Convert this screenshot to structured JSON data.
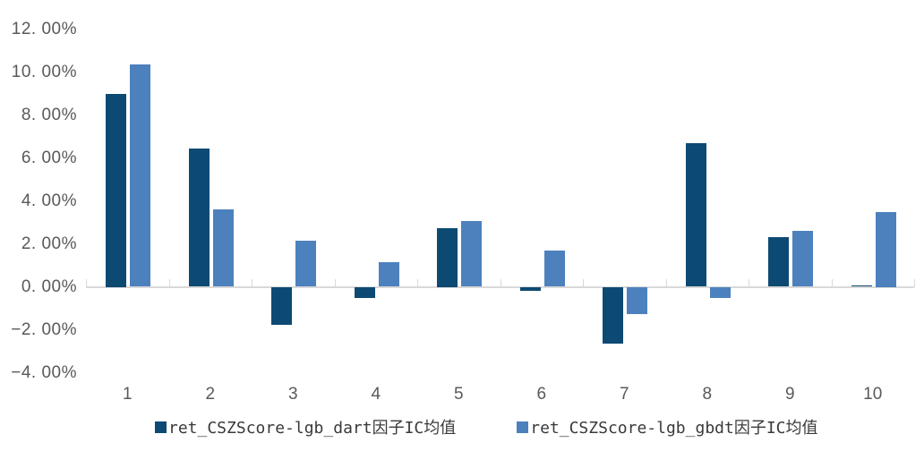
{
  "chart_data": {
    "type": "bar",
    "title": "",
    "xlabel": "",
    "ylabel": "",
    "categories": [
      "1",
      "2",
      "3",
      "4",
      "5",
      "6",
      "7",
      "8",
      "9",
      "10"
    ],
    "series": [
      {
        "name": "ret_CSZScore-lgb_dart因子IC均值",
        "color": "#0d4a73",
        "values": [
          9.0,
          6.45,
          -1.75,
          -0.5,
          2.75,
          -0.2,
          -2.65,
          6.7,
          2.3,
          0.05
        ]
      },
      {
        "name": "ret_CSZScore-lgb_gbdt因子IC均值",
        "color": "#4c81bd",
        "values": [
          10.35,
          3.6,
          2.15,
          1.15,
          3.05,
          1.7,
          -1.25,
          -0.5,
          2.6,
          3.5
        ]
      }
    ],
    "unit": "%",
    "ylim": [
      -4,
      12
    ],
    "y_tick_values": [
      12,
      10,
      8,
      6,
      4,
      2,
      0,
      -2,
      -4
    ],
    "y_tick_labels": [
      "12. 00%",
      "10. 00%",
      "8. 00%",
      "6. 00%",
      "4. 00%",
      "2. 00%",
      "0. 00%",
      "−2. 00%",
      "−4. 00%"
    ],
    "grid": false,
    "legend_position": "bottom",
    "axis_color": "#d9d9d9",
    "label_color": "#595959"
  }
}
